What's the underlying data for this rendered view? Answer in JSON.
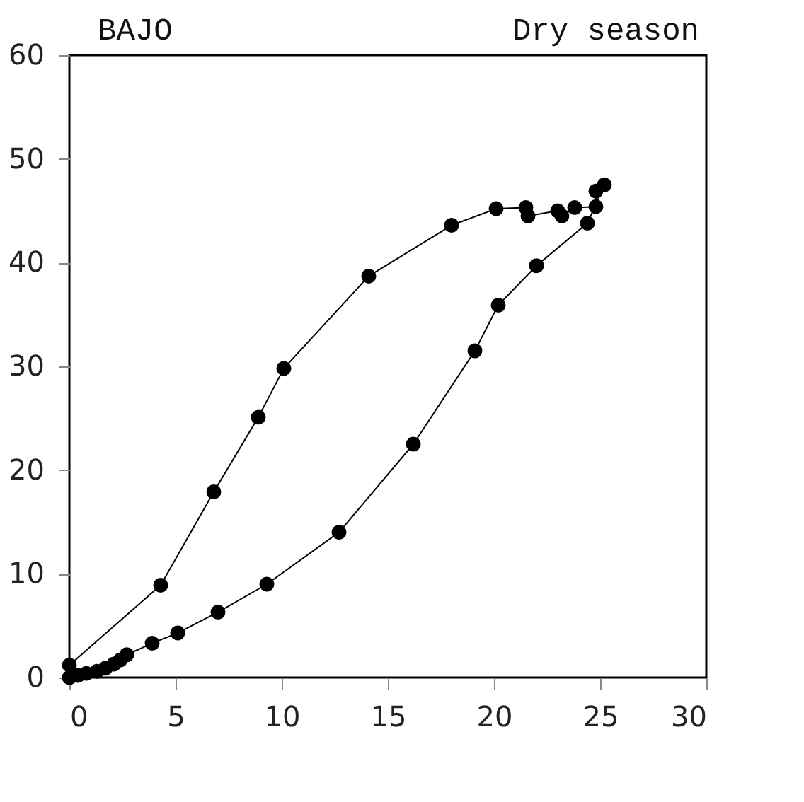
{
  "chart_data": {
    "type": "line",
    "annotations": [
      "BAJO",
      "Dry season"
    ],
    "x": [
      0,
      0.4,
      0.8,
      1.3,
      1.7,
      2.1,
      2.4,
      2.7,
      3.9,
      5.1,
      7.0,
      9.3,
      12.7,
      16.2,
      19.1,
      20.2,
      22.0,
      24.4,
      25.2,
      24.8,
      24.8,
      23.8,
      23.2,
      23.0,
      21.6,
      21.5,
      20.1,
      18.0,
      14.1,
      10.1,
      8.9,
      6.8,
      4.3,
      0
    ],
    "series": [
      {
        "color": "#000000",
        "values": [
          0,
          0.2,
          0.4,
          0.6,
          0.9,
          1.3,
          1.7,
          2.2,
          3.3,
          4.3,
          6.3,
          9.0,
          14.0,
          22.5,
          31.5,
          35.9,
          39.7,
          43.8,
          47.5,
          46.9,
          45.4,
          45.3,
          44.5,
          45.0,
          44.5,
          45.3,
          45.2,
          43.6,
          38.7,
          29.8,
          25.1,
          17.9,
          8.9,
          1.2
        ]
      }
    ],
    "xlim": [
      0,
      30
    ],
    "ylim": [
      0,
      60
    ],
    "xticks": [
      0,
      5,
      10,
      15,
      20,
      25,
      30
    ],
    "yticks": [
      0,
      10,
      20,
      30,
      40,
      50,
      60
    ],
    "grid": false,
    "marker": "circle",
    "line_style": "solid"
  }
}
